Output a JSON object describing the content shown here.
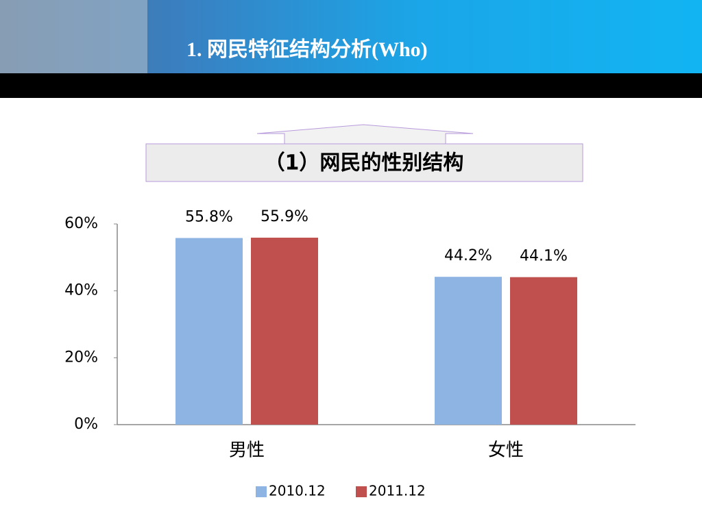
{
  "chart_data": {
    "type": "bar",
    "title": "1. 网民特征结构分析(Who)",
    "subtitle": "（1）网民的性别结构",
    "categories": [
      "男性",
      "女性"
    ],
    "series": [
      {
        "name": "2010.12",
        "color": "#8eb4e3",
        "values": [
          55.8,
          44.2
        ],
        "value_labels": [
          "55.8%",
          "44.2%"
        ]
      },
      {
        "name": "2011.12",
        "color": "#c0504d",
        "values": [
          55.9,
          44.1
        ],
        "value_labels": [
          "55.9%",
          "44.1%"
        ]
      }
    ],
    "ylim": [
      0,
      60
    ],
    "yticks": [
      {
        "value": 0,
        "label": "0%"
      },
      {
        "value": 20,
        "label": "20%"
      },
      {
        "value": 40,
        "label": "40%"
      },
      {
        "value": 60,
        "label": "60%"
      }
    ],
    "grid": false,
    "legend": "bottom"
  }
}
